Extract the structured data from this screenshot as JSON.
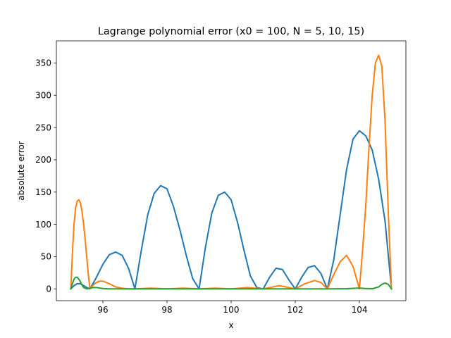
{
  "chart_data": {
    "type": "line",
    "title": "Lagrange polynomial error (x0 = 100, N = 5, 10, 15)",
    "xlabel": "x",
    "ylabel": "absolute error",
    "xlim": [
      94.55,
      105.45
    ],
    "ylim": [
      -18.3,
      384.3
    ],
    "xticks": [
      96,
      98,
      100,
      102,
      104
    ],
    "yticks": [
      0,
      50,
      100,
      150,
      200,
      250,
      300,
      350
    ],
    "grid": false,
    "legend": "none",
    "series": [
      {
        "color": "#1f77b4",
        "x": [
          95.0,
          95.1,
          95.2,
          95.3,
          95.4,
          95.5,
          95.6,
          95.8,
          96.0,
          96.2,
          96.4,
          96.6,
          96.8,
          97.0,
          97.2,
          97.4,
          97.6,
          97.8,
          98.0,
          98.2,
          98.4,
          98.6,
          98.8,
          99.0,
          99.2,
          99.4,
          99.6,
          99.8,
          100.0,
          100.2,
          100.4,
          100.6,
          100.8,
          101.0,
          101.2,
          101.4,
          101.6,
          101.8,
          102.0,
          102.2,
          102.4,
          102.6,
          102.8,
          103.0,
          103.2,
          103.4,
          103.6,
          103.8,
          104.0,
          104.2,
          104.4,
          104.6,
          104.8,
          105.0
        ],
        "y": [
          0,
          5,
          8,
          8,
          5,
          2,
          0,
          18,
          38,
          53,
          57,
          52,
          32,
          0,
          60,
          115,
          148,
          160,
          155,
          128,
          92,
          52,
          16,
          0,
          65,
          118,
          145,
          150,
          138,
          103,
          60,
          20,
          2,
          0,
          18,
          32,
          30,
          14,
          0,
          18,
          33,
          36,
          24,
          0,
          45,
          115,
          185,
          232,
          245,
          237,
          215,
          170,
          105,
          0
        ]
      },
      {
        "color": "#ff7f0e",
        "x": [
          95.0,
          95.05,
          95.1,
          95.15,
          95.2,
          95.25,
          95.3,
          95.35,
          95.4,
          95.45,
          95.5,
          95.55,
          95.6,
          95.7,
          95.8,
          95.9,
          96.0,
          96.2,
          96.4,
          96.6,
          96.8,
          97.0,
          97.5,
          98.0,
          98.5,
          99.0,
          99.5,
          100.0,
          100.5,
          101.0,
          101.5,
          102.0,
          102.3,
          102.6,
          102.8,
          103.0,
          103.2,
          103.4,
          103.6,
          103.8,
          104.0,
          104.1,
          104.2,
          104.3,
          104.4,
          104.5,
          104.6,
          104.7,
          104.8,
          104.9,
          105.0
        ],
        "y": [
          0,
          55,
          100,
          125,
          136,
          138,
          133,
          120,
          100,
          75,
          48,
          20,
          0,
          6,
          10,
          12,
          12,
          8,
          3,
          1,
          0,
          0,
          1,
          0,
          1,
          0,
          1,
          0,
          2,
          0,
          5,
          0,
          8,
          13,
          10,
          0,
          22,
          42,
          52,
          35,
          0,
          60,
          130,
          220,
          300,
          350,
          362,
          345,
          260,
          120,
          0
        ]
      },
      {
        "color": "#2ca02c",
        "x": [
          95.0,
          95.05,
          95.1,
          95.15,
          95.2,
          95.25,
          95.3,
          95.35,
          95.4,
          95.5,
          95.6,
          95.7,
          95.8,
          96.0,
          96.2,
          97.0,
          98.0,
          99.0,
          100.0,
          101.0,
          102.0,
          103.0,
          103.6,
          103.8,
          104.0,
          104.2,
          104.4,
          104.6,
          104.7,
          104.8,
          104.9,
          105.0
        ],
        "y": [
          0,
          8,
          15,
          18,
          18,
          15,
          11,
          6,
          2,
          0,
          1,
          2,
          2,
          0.5,
          0,
          0,
          0,
          0,
          0,
          0,
          0,
          0,
          0.3,
          0.8,
          1.2,
          0.5,
          0.2,
          3,
          7,
          9,
          7,
          0
        ]
      }
    ]
  }
}
